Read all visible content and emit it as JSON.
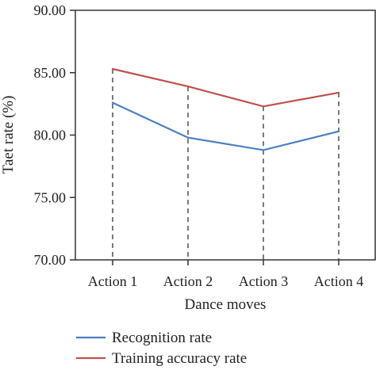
{
  "chart_data": {
    "type": "line",
    "categories": [
      "Action 1",
      "Action 2",
      "Action 3",
      "Action 4"
    ],
    "series": [
      {
        "name": "Recognition rate",
        "values": [
          82.6,
          79.8,
          78.8,
          80.3
        ],
        "color": "#4a7fc1"
      },
      {
        "name": "Training accuracy rate",
        "values": [
          85.3,
          83.9,
          82.3,
          83.4
        ],
        "color": "#c0504d"
      }
    ],
    "xlabel": "Dance moves",
    "ylabel": "Taet rate (%)",
    "ylim": [
      70,
      90
    ],
    "yticks": [
      "70.00",
      "75.00",
      "80.00",
      "85.00",
      "90.00"
    ],
    "ytick_values": [
      70,
      75,
      80,
      85,
      90
    ],
    "grid": false,
    "drop_lines": "dashed vertical lines from upper series to x-axis",
    "legend_position": "bottom"
  }
}
